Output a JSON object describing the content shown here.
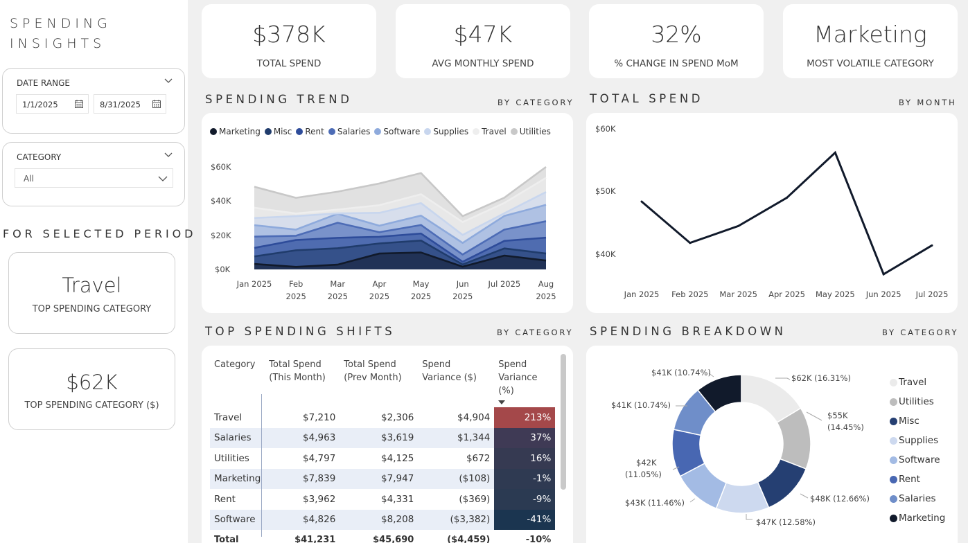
{
  "app_title": [
    "SPENDING",
    "INSIGHTS"
  ],
  "filters": {
    "date_range": {
      "label": "DATE RANGE",
      "start": "1/1/2025",
      "end": "8/31/2025"
    },
    "category": {
      "label": "CATEGORY",
      "value": "All"
    }
  },
  "selected_period": {
    "title": "FOR SELECTED PERIOD",
    "top_category": {
      "value": "Travel",
      "label": "TOP SPENDING CATEGORY"
    },
    "top_amount": {
      "value": "$62K",
      "label": "TOP SPENDING CATEGORY ($)"
    }
  },
  "kpis": [
    {
      "value": "$378K",
      "label": "TOTAL SPEND"
    },
    {
      "value": "$47K",
      "label": "AVG MONTHLY SPEND"
    },
    {
      "value": "32%",
      "label": "% CHANGE IN SPEND MoM"
    },
    {
      "value": "Marketing",
      "label": "MOST VOLATILE CATEGORY"
    }
  ],
  "spending_trend": {
    "title": "SPENDING TREND",
    "subtitle": "BY CATEGORY",
    "y_ticks": [
      "$60K",
      "$40K",
      "$20K",
      "$0K"
    ],
    "x_ticks": [
      [
        "Jan 2025",
        ""
      ],
      [
        "Feb",
        "2025"
      ],
      [
        "Mar",
        "2025"
      ],
      [
        "Apr",
        "2025"
      ],
      [
        "May",
        "2025"
      ],
      [
        "Jun",
        "2025"
      ],
      [
        "Jul 2025",
        ""
      ],
      [
        "Aug",
        "2025"
      ]
    ]
  },
  "total_spend": {
    "title": "TOTAL SPEND",
    "subtitle": "BY MONTH",
    "y_ticks": [
      "$60K",
      "$50K",
      "$40K"
    ],
    "x_ticks": [
      "Jan 2025",
      "Feb 2025",
      "Mar 2025",
      "Apr 2025",
      "May 2025",
      "Jun 2025",
      "Jul 2025"
    ]
  },
  "shifts": {
    "title": "TOP SPENDING SHIFTS",
    "subtitle": "BY CATEGORY",
    "headers": [
      "Category",
      "Total Spend (This Month)",
      "Total Spend (Prev Month)",
      "Spend Variance ($)",
      "Spend Variance (%)"
    ],
    "rows": [
      {
        "category": "Travel",
        "this": "$7,210",
        "prev": "$2,306",
        "var": "$4,904",
        "pct": "213%",
        "color": "#a4484a"
      },
      {
        "category": "Salaries",
        "this": "$4,963",
        "prev": "$3,619",
        "var": "$1,344",
        "pct": "37%",
        "color": "#3f3a55"
      },
      {
        "category": "Utilities",
        "this": "$4,797",
        "prev": "$4,125",
        "var": "$672",
        "pct": "16%",
        "color": "#363a52"
      },
      {
        "category": "Marketing",
        "this": "$7,839",
        "prev": "$7,947",
        "var": "($108)",
        "pct": "-1%",
        "color": "#2f3a52"
      },
      {
        "category": "Rent",
        "this": "$3,962",
        "prev": "$4,331",
        "var": "($369)",
        "pct": "-9%",
        "color": "#2b3a52"
      },
      {
        "category": "Software",
        "this": "$4,826",
        "prev": "$8,208",
        "var": "($3,382)",
        "pct": "-41%",
        "color": "#1b3550"
      }
    ],
    "total": {
      "category": "Total",
      "this": "$41,231",
      "prev": "$45,690",
      "var": "($4,459)",
      "pct": "-10%"
    }
  },
  "breakdown": {
    "title": "SPENDING BREAKDOWN",
    "subtitle": "BY CATEGORY",
    "slice_labels": [
      "$62K (16.31%)",
      "$55K",
      "(14.45%)",
      "$48K (12.66%)",
      "$47K (12.58%)",
      "$43K (11.46%)",
      "$42K",
      "(11.05%)",
      "$41K (10.74%)",
      "$41K (10.74%)"
    ]
  },
  "chart_data": [
    {
      "type": "area",
      "title": "SPENDING TREND",
      "subtitle": "BY CATEGORY",
      "x": [
        "Jan 2025",
        "Feb 2025",
        "Mar 2025",
        "Apr 2025",
        "May 2025",
        "Jun 2025",
        "Jul 2025",
        "Aug 2025"
      ],
      "ylim": [
        0,
        65000
      ],
      "stacked": true,
      "series": [
        {
          "name": "Marketing",
          "color": "#111a2b",
          "values": [
            3200,
            1500,
            2800,
            9300,
            9900,
            1600,
            8100,
            5200
          ]
        },
        {
          "name": "Misc",
          "color": "#203c6c",
          "values": [
            4400,
            9700,
            9600,
            5900,
            7000,
            1300,
            4200,
            4100
          ]
        },
        {
          "name": "Rent",
          "color": "#2e4c9a",
          "values": [
            5000,
            6000,
            6100,
            3900,
            4100,
            1600,
            4400,
            9300
          ]
        },
        {
          "name": "Salaries",
          "color": "#4d6cb6",
          "values": [
            6600,
            2500,
            8800,
            2700,
            5000,
            4200,
            6600,
            9600
          ]
        },
        {
          "name": "Software",
          "color": "#8eaadc",
          "values": [
            6700,
            3600,
            5300,
            3800,
            5500,
            6800,
            8000,
            9600
          ]
        },
        {
          "name": "Supplies",
          "color": "#c8d6ee",
          "values": [
            4200,
            7900,
            210,
            7500,
            7300,
            4700,
            1600,
            7500
          ]
        },
        {
          "name": "Travel",
          "color": "#eeeeee",
          "values": [
            6000,
            1500,
            2200,
            4500,
            5200,
            7500,
            6000,
            8300
          ]
        },
        {
          "name": "Utilities",
          "color": "#c8c8c8",
          "values": [
            12300,
            9200,
            10500,
            12700,
            12400,
            3500,
            3100,
            6400
          ]
        }
      ]
    },
    {
      "type": "line",
      "title": "TOTAL SPEND",
      "subtitle": "BY MONTH",
      "x": [
        "Jan 2025",
        "Feb 2025",
        "Mar 2025",
        "Apr 2025",
        "May 2025",
        "Jun 2025",
        "Jul 2025"
      ],
      "ylim": [
        35000,
        62000
      ],
      "series": [
        {
          "values": [
            48400,
            41800,
            44500,
            49000,
            56200,
            36800,
            41400
          ]
        }
      ]
    },
    {
      "type": "pie",
      "title": "SPENDING BREAKDOWN",
      "subtitle": "BY CATEGORY",
      "series": [
        {
          "name": "Travel",
          "value": 62,
          "label": "$62K (16.31%)",
          "color": "#ebebeb"
        },
        {
          "name": "Utilities",
          "value": 55,
          "label": "$55K (14.45%)",
          "color": "#bdbdbd"
        },
        {
          "name": "Misc",
          "value": 48,
          "label": "$48K (12.66%)",
          "color": "#253f72"
        },
        {
          "name": "Supplies",
          "value": 47,
          "label": "$47K (12.58%)",
          "color": "#cdd9ef"
        },
        {
          "name": "Software",
          "value": 43,
          "label": "$43K (11.46%)",
          "color": "#a3bbe4"
        },
        {
          "name": "Rent",
          "value": 42,
          "label": "$42K (11.05%)",
          "color": "#4867b2"
        },
        {
          "name": "Salaries",
          "value": 41,
          "label": "$41K (10.74%)",
          "color": "#6f8ec9"
        },
        {
          "name": "Marketing",
          "value": 41,
          "label": "$41K (10.74%)",
          "color": "#111a2b"
        }
      ]
    }
  ]
}
